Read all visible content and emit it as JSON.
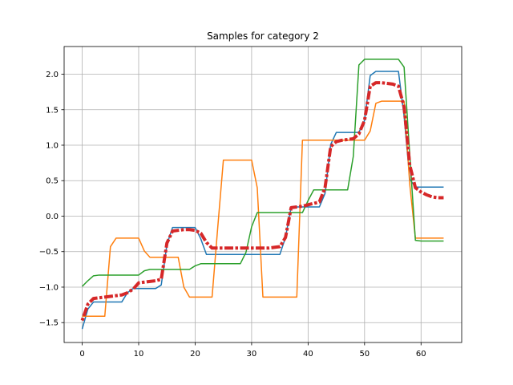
{
  "chart_data": {
    "type": "line",
    "title": "Samples for category 2",
    "xlabel": "",
    "ylabel": "",
    "xlim": [
      -3.2,
      67.2
    ],
    "ylim": [
      -1.78,
      2.39
    ],
    "grid": true,
    "legend": "none",
    "x_ticks": [
      0,
      10,
      20,
      30,
      40,
      50,
      60
    ],
    "y_ticks": [
      -1.5,
      -1.0,
      -0.5,
      0.0,
      0.5,
      1.0,
      1.5,
      2.0
    ],
    "x_tick_labels": [
      "0",
      "10",
      "20",
      "30",
      "40",
      "50",
      "60"
    ],
    "y_tick_labels": [
      "−1.5",
      "−1.0",
      "−0.5",
      "0.0",
      "0.5",
      "1.0",
      "1.5",
      "2.0"
    ],
    "x": [
      0,
      1,
      2,
      3,
      4,
      5,
      6,
      7,
      8,
      9,
      10,
      11,
      12,
      13,
      14,
      15,
      16,
      17,
      18,
      19,
      20,
      21,
      22,
      23,
      24,
      25,
      26,
      27,
      28,
      29,
      30,
      31,
      32,
      33,
      34,
      35,
      36,
      37,
      38,
      39,
      40,
      41,
      42,
      43,
      44,
      45,
      46,
      47,
      48,
      49,
      50,
      51,
      52,
      53,
      54,
      55,
      56,
      57,
      58,
      59,
      60,
      61,
      62,
      63,
      64
    ],
    "series": [
      {
        "color": "#1f77b4",
        "width": 1.5,
        "dash": "",
        "values": [
          -1.59,
          -1.31,
          -1.21,
          -1.21,
          -1.21,
          -1.21,
          -1.21,
          -1.21,
          -1.08,
          -1.02,
          -1.02,
          -1.02,
          -1.02,
          -1.02,
          -0.97,
          -0.4,
          -0.16,
          -0.16,
          -0.16,
          -0.16,
          -0.16,
          -0.32,
          -0.54,
          -0.54,
          -0.54,
          -0.54,
          -0.54,
          -0.54,
          -0.54,
          -0.54,
          -0.54,
          -0.54,
          -0.54,
          -0.54,
          -0.54,
          -0.54,
          -0.3,
          0.13,
          0.13,
          0.13,
          0.13,
          0.13,
          0.13,
          0.32,
          1.01,
          1.18,
          1.18,
          1.18,
          1.18,
          1.18,
          1.35,
          1.98,
          2.04,
          2.04,
          2.04,
          2.04,
          2.04,
          1.41,
          0.52,
          0.41,
          0.41,
          0.41,
          0.41,
          0.41,
          0.41
        ]
      },
      {
        "color": "#ff7f0e",
        "width": 1.5,
        "dash": "",
        "values": [
          -1.41,
          -1.41,
          -1.41,
          -1.41,
          -1.41,
          -0.43,
          -0.31,
          -0.31,
          -0.31,
          -0.31,
          -0.31,
          -0.49,
          -0.58,
          -0.58,
          -0.58,
          -0.58,
          -0.58,
          -0.58,
          -1.0,
          -1.14,
          -1.14,
          -1.14,
          -1.14,
          -1.14,
          -0.16,
          0.79,
          0.79,
          0.79,
          0.79,
          0.79,
          0.79,
          0.4,
          -1.14,
          -1.14,
          -1.14,
          -1.14,
          -1.14,
          -1.14,
          -1.14,
          1.07,
          1.07,
          1.07,
          1.07,
          1.07,
          1.07,
          1.07,
          1.07,
          1.07,
          1.07,
          1.07,
          1.07,
          1.2,
          1.59,
          1.62,
          1.62,
          1.62,
          1.62,
          1.62,
          0.45,
          -0.31,
          -0.31,
          -0.31,
          -0.31,
          -0.31,
          -0.31
        ]
      },
      {
        "color": "#2ca02c",
        "width": 1.5,
        "dash": "",
        "values": [
          -0.99,
          -0.91,
          -0.84,
          -0.83,
          -0.83,
          -0.83,
          -0.83,
          -0.83,
          -0.83,
          -0.83,
          -0.83,
          -0.77,
          -0.75,
          -0.75,
          -0.75,
          -0.75,
          -0.75,
          -0.75,
          -0.75,
          -0.75,
          -0.7,
          -0.67,
          -0.67,
          -0.67,
          -0.67,
          -0.67,
          -0.67,
          -0.67,
          -0.67,
          -0.51,
          -0.15,
          0.05,
          0.05,
          0.05,
          0.05,
          0.05,
          0.05,
          0.05,
          0.05,
          0.05,
          0.22,
          0.37,
          0.37,
          0.37,
          0.37,
          0.37,
          0.37,
          0.37,
          0.84,
          2.13,
          2.21,
          2.21,
          2.21,
          2.21,
          2.21,
          2.21,
          2.21,
          2.1,
          0.87,
          -0.34,
          -0.35,
          -0.35,
          -0.35,
          -0.35,
          -0.35
        ]
      },
      {
        "color": "#d62728",
        "width": 4,
        "dash": "3.5,2.5,11,2.5",
        "values": [
          -1.47,
          -1.24,
          -1.16,
          -1.15,
          -1.14,
          -1.13,
          -1.12,
          -1.11,
          -1.08,
          -1.03,
          -0.94,
          -0.93,
          -0.92,
          -0.91,
          -0.89,
          -0.38,
          -0.21,
          -0.2,
          -0.19,
          -0.19,
          -0.2,
          -0.24,
          -0.37,
          -0.45,
          -0.45,
          -0.45,
          -0.45,
          -0.45,
          -0.45,
          -0.45,
          -0.45,
          -0.45,
          -0.45,
          -0.45,
          -0.44,
          -0.43,
          -0.3,
          0.12,
          0.13,
          0.14,
          0.16,
          0.18,
          0.2,
          0.4,
          0.98,
          1.05,
          1.07,
          1.08,
          1.09,
          1.16,
          1.35,
          1.83,
          1.88,
          1.88,
          1.87,
          1.86,
          1.83,
          1.54,
          0.72,
          0.4,
          0.34,
          0.3,
          0.27,
          0.26,
          0.26
        ]
      }
    ]
  }
}
